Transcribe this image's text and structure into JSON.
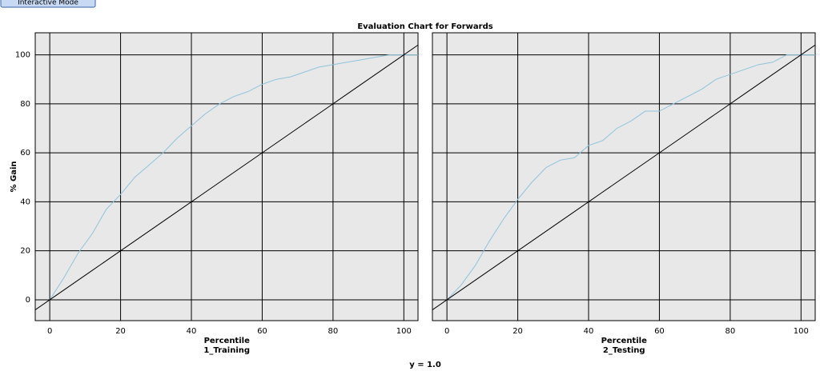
{
  "button": "Interactive Mode",
  "title": "Evaluation Chart for Forwards",
  "ylabel": "% Gain",
  "footer": "y = 1.0",
  "chart_data": [
    {
      "type": "line",
      "xlabel": "Percentile",
      "subtitle": "1_Training",
      "x": [
        -5,
        0,
        4,
        8,
        12,
        16,
        20,
        24,
        28,
        32,
        36,
        40,
        44,
        48,
        52,
        56,
        60,
        64,
        68,
        72,
        76,
        80,
        84,
        88,
        92,
        96,
        100,
        105
      ],
      "series": [
        {
          "color": "#8fc3dc",
          "values": [
            null,
            0,
            9,
            19,
            27,
            37,
            43,
            50,
            55,
            60,
            66,
            71,
            76,
            80,
            83,
            85,
            88,
            90,
            91,
            93,
            95,
            96,
            97,
            98,
            99,
            100,
            100,
            100
          ]
        },
        {
          "color": "#000000",
          "values": [
            -5,
            0,
            4,
            8,
            12,
            16,
            20,
            24,
            28,
            32,
            36,
            40,
            44,
            48,
            52,
            56,
            60,
            64,
            68,
            72,
            76,
            80,
            84,
            88,
            92,
            96,
            100,
            105
          ]
        }
      ],
      "xlim": [
        -4.1,
        104
      ],
      "ylim": [
        -8.5,
        109
      ],
      "xticks": [
        0,
        20,
        40,
        60,
        80,
        100
      ],
      "yticks": [
        0,
        20,
        40,
        60,
        80,
        100
      ],
      "grid": true
    },
    {
      "type": "line",
      "xlabel": "Percentile",
      "subtitle": "2_Testing",
      "x": [
        -5,
        0,
        4,
        8,
        12,
        16,
        20,
        24,
        28,
        32,
        36,
        40,
        44,
        48,
        52,
        56,
        60,
        64,
        68,
        72,
        76,
        80,
        84,
        88,
        92,
        96,
        100,
        105
      ],
      "series": [
        {
          "color": "#8fc3dc",
          "values": [
            null,
            0,
            6,
            14,
            24,
            33,
            41,
            48,
            54,
            57,
            58,
            63,
            65,
            70,
            73,
            77,
            77,
            80,
            83,
            86,
            90,
            92,
            94,
            96,
            97,
            100,
            100,
            100
          ]
        },
        {
          "color": "#000000",
          "values": [
            -5,
            0,
            4,
            8,
            12,
            16,
            20,
            24,
            28,
            32,
            36,
            40,
            44,
            48,
            52,
            56,
            60,
            64,
            68,
            72,
            76,
            80,
            84,
            88,
            92,
            96,
            100,
            105
          ]
        }
      ],
      "xlim": [
        -4.1,
        104
      ],
      "ylim": [
        -8.5,
        109
      ],
      "xticks": [
        0,
        20,
        40,
        60,
        80,
        100
      ],
      "yticks": [
        0,
        20,
        40,
        60,
        80,
        100
      ],
      "grid": true
    }
  ]
}
